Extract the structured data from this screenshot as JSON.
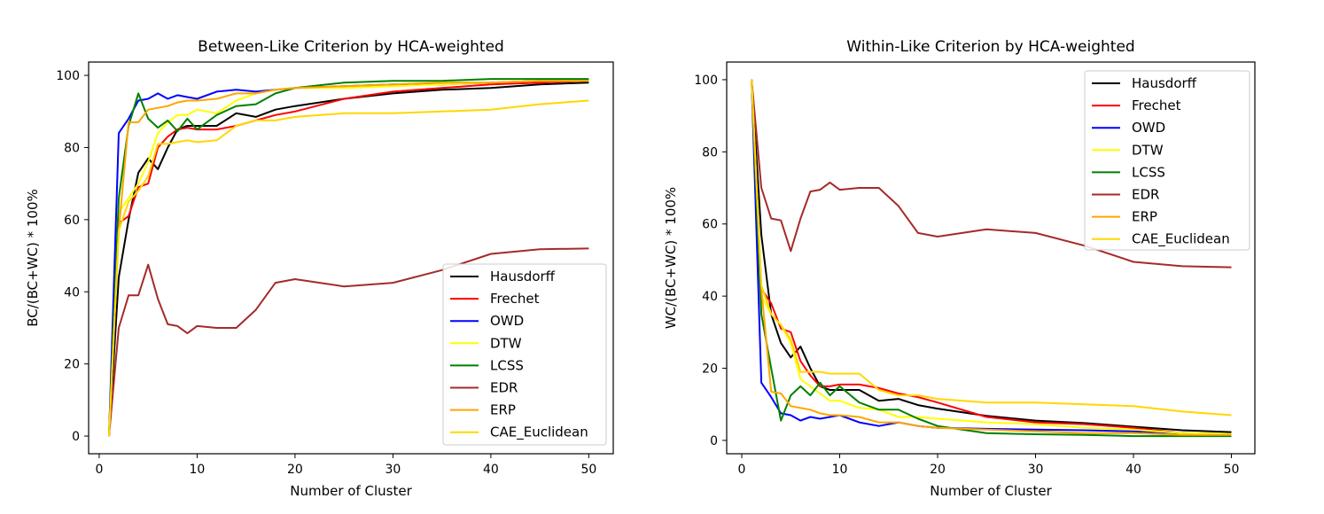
{
  "chart_data": [
    {
      "type": "line",
      "title": "Between-Like Criterion by HCA-weighted",
      "xlabel": "Number of Cluster",
      "ylabel": "BC/(BC+WC) * 100%",
      "xlim": [
        -1.08,
        52.5
      ],
      "ylim": [
        -4.9,
        103.7
      ],
      "xticks": [
        0,
        10,
        20,
        30,
        40,
        50
      ],
      "yticks": [
        0,
        20,
        40,
        60,
        80,
        100
      ],
      "legend_position": "lower-right",
      "x": [
        1,
        2,
        3,
        4,
        5,
        6,
        7,
        8,
        9,
        10,
        12,
        14,
        16,
        18,
        20,
        25,
        30,
        35,
        40,
        45,
        50
      ],
      "series": [
        {
          "name": "Hausdorff",
          "color": "#000000",
          "values": [
            0,
            44,
            60,
            73,
            77,
            74,
            80,
            85,
            86,
            86,
            86,
            89.5,
            88.5,
            90.5,
            91.5,
            93.5,
            95,
            96,
            96.5,
            97.5,
            98
          ]
        },
        {
          "name": "Frechet",
          "color": "#ff0000",
          "values": [
            0,
            59,
            61,
            69,
            70,
            80,
            83,
            85,
            85.5,
            85,
            85,
            86,
            87.5,
            89,
            90,
            93.5,
            95.5,
            96.5,
            97.5,
            98,
            98.5
          ]
        },
        {
          "name": "OWD",
          "color": "#0000ff",
          "values": [
            0,
            84,
            88,
            93,
            93.5,
            95,
            93.5,
            94.5,
            94,
            93.5,
            95.5,
            96,
            95.5,
            96,
            96.5,
            97,
            97.5,
            97.5,
            98,
            98.5,
            98.5
          ]
        },
        {
          "name": "DTW",
          "color": "#ffff00",
          "values": [
            0,
            62,
            66,
            70,
            76,
            84,
            87,
            89,
            89,
            90.5,
            89.5,
            93,
            95,
            96,
            96.5,
            96.5,
            97,
            97.5,
            98,
            98.5,
            98.5
          ]
        },
        {
          "name": "LCSS",
          "color": "#008000",
          "values": [
            0,
            66,
            86,
            95,
            88,
            85.5,
            87.5,
            84.5,
            88,
            85,
            89,
            91.5,
            92,
            95,
            96.5,
            98,
            98.5,
            98.5,
            99,
            99,
            99
          ]
        },
        {
          "name": "EDR",
          "color": "#a52a2a",
          "values": [
            0,
            30,
            39,
            39,
            47.5,
            38,
            31,
            30.5,
            28.5,
            30.5,
            30,
            30,
            35,
            42.5,
            43.5,
            41.5,
            42.5,
            46,
            50.5,
            51.8,
            52
          ]
        },
        {
          "name": "ERP",
          "color": "#ffa500",
          "values": [
            0,
            57,
            87,
            87,
            90.5,
            91,
            91.5,
            92.5,
            93,
            93,
            93.5,
            95,
            95,
            96,
            96.5,
            97,
            97.5,
            98,
            98,
            98.5,
            98.5
          ]
        },
        {
          "name": "CAE_Euclidean",
          "color": "#ffd700",
          "values": [
            0,
            57,
            65,
            68,
            72,
            81,
            81,
            81.5,
            82,
            81.5,
            82,
            86,
            87.5,
            87.5,
            88.5,
            89.5,
            89.5,
            90,
            90.5,
            92,
            93
          ]
        }
      ]
    },
    {
      "type": "line",
      "title": "Within-Like Criterion by HCA-weighted",
      "xlabel": "Number of Cluster",
      "ylabel": "WC/(BC+WC) * 100%",
      "xlim": [
        -1.54,
        52.4
      ],
      "ylim": [
        -3.7,
        104.9
      ],
      "xticks": [
        0,
        10,
        20,
        30,
        40,
        50
      ],
      "yticks": [
        0,
        20,
        40,
        60,
        80,
        100
      ],
      "legend_position": "upper-right",
      "x": [
        1,
        2,
        3,
        4,
        5,
        6,
        7,
        8,
        9,
        10,
        12,
        14,
        16,
        18,
        20,
        25,
        30,
        35,
        40,
        45,
        50
      ],
      "series": [
        {
          "name": "Hausdorff",
          "color": "#000000",
          "values": [
            100,
            57,
            35,
            27,
            23,
            26,
            20,
            15,
            14,
            14,
            14,
            11,
            11.5,
            9.8,
            8.8,
            6.8,
            5.5,
            4.8,
            3.8,
            2.8,
            2.3
          ]
        },
        {
          "name": "Frechet",
          "color": "#ff0000",
          "values": [
            100,
            42,
            38,
            31,
            30,
            22,
            18,
            15,
            15,
            15.5,
            15.5,
            14.5,
            13,
            12,
            10.5,
            6.5,
            5,
            4.5,
            3.5,
            2,
            1.5
          ]
        },
        {
          "name": "OWD",
          "color": "#0000ff",
          "values": [
            100,
            16,
            12,
            7.5,
            7,
            5.5,
            6.5,
            6,
            6.5,
            7,
            5,
            4,
            5,
            4,
            3.5,
            3.2,
            3,
            2.8,
            2.5,
            2,
            1.8
          ]
        },
        {
          "name": "DTW",
          "color": "#ffff00",
          "values": [
            100,
            40,
            35,
            32,
            27,
            17,
            15,
            13,
            11,
            11,
            9,
            8.5,
            6.5,
            6.5,
            6,
            5,
            4.5,
            3.5,
            3,
            2,
            1.8
          ]
        },
        {
          "name": "LCSS",
          "color": "#008000",
          "values": [
            100,
            35,
            20,
            5.5,
            12.5,
            15,
            12.5,
            16,
            12.5,
            15,
            10.5,
            8.5,
            8.5,
            6,
            4,
            2,
            1.7,
            1.5,
            1.2,
            1.2,
            1.2
          ]
        },
        {
          "name": "EDR",
          "color": "#a52a2a",
          "values": [
            100,
            70,
            61.5,
            61,
            52.5,
            61.5,
            69,
            69.5,
            71.5,
            69.5,
            70,
            70,
            65,
            57.5,
            56.5,
            58.5,
            57.5,
            54,
            49.5,
            48.3,
            48
          ]
        },
        {
          "name": "ERP",
          "color": "#ffa500",
          "values": [
            100,
            42,
            13.5,
            13,
            9.5,
            9,
            8.5,
            7.5,
            7,
            7,
            6.5,
            5,
            5,
            4,
            3.5,
            3,
            2.5,
            2,
            2,
            1.5,
            1.5
          ]
        },
        {
          "name": "CAE_Euclidean",
          "color": "#ffd700",
          "values": [
            100,
            43,
            35,
            32,
            28,
            19,
            19,
            19,
            18.5,
            18.5,
            18.5,
            14,
            12.5,
            12.5,
            11.5,
            10.5,
            10.5,
            10,
            9.5,
            8,
            7
          ]
        }
      ]
    }
  ]
}
